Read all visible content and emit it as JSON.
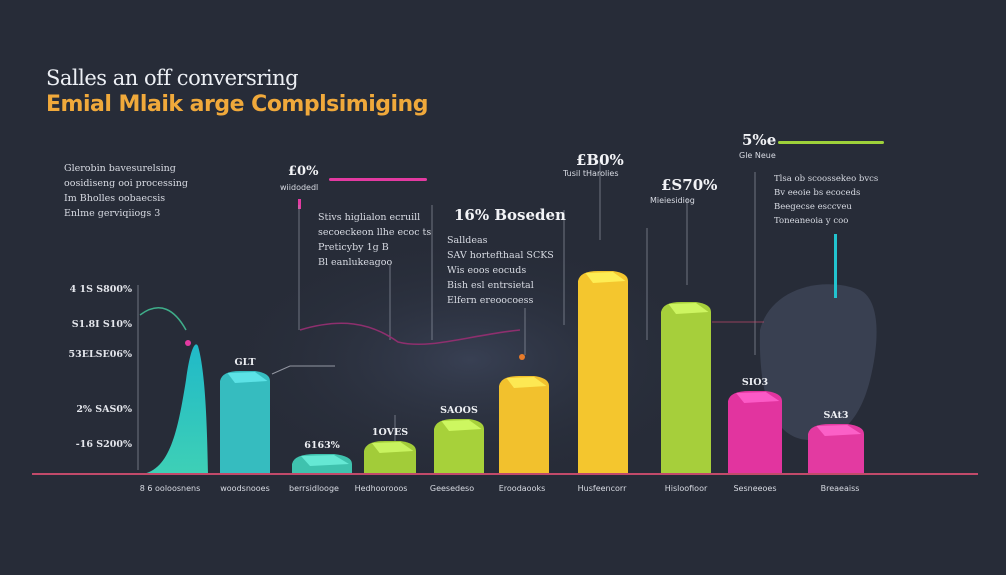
{
  "header": {
    "title": "Salles an off conversring",
    "subtitle": "Emial Mlaik arge Complsimiging"
  },
  "notes": [
    {
      "id": "n1",
      "lines": [
        "Glerobin bavesurelsing",
        "oosidiseng ooi processing",
        "Im Bholles oobaecsis",
        "Enlme gerviqiiogs 3"
      ]
    },
    {
      "id": "n2",
      "lines": [
        "Stivs higlialon ecruill",
        "secoeckeon llhe ecoc ts",
        "Preticyby 1g B",
        "Bl eanlukeagoo"
      ]
    },
    {
      "id": "n3",
      "lines": [
        "Salldeas",
        "SAV hortefthaal SCKS",
        "Wis eoos eocuds",
        "Bish esl entrsietal",
        "Elfern ereoocoess"
      ]
    },
    {
      "id": "n4",
      "lines": [
        "Tlsa ob scoossekeo bvcs",
        "Bv eeoie bs ecoceds",
        "Beegecse esccveu",
        "Toneaneoia y coo"
      ]
    }
  ],
  "headline_values": [
    {
      "id": "h1",
      "value": "£0%",
      "label": "wiidodedl"
    },
    {
      "id": "h2",
      "value": "16% Boseden",
      "label": ""
    },
    {
      "id": "h3",
      "value": "£B0%",
      "label": "Tusil tHarolies"
    },
    {
      "id": "h4",
      "value": "£S70%",
      "label": "Mieiesidiog"
    },
    {
      "id": "h5",
      "value": "5%e",
      "label": "Gle Neue"
    }
  ],
  "chart_data": {
    "type": "bar",
    "title": "Salles an off conversring",
    "subtitle": "Emial Mlaik arge Complsimiging",
    "categories": [
      "8 6 ooloosnens",
      "woodsnooes",
      "berrsidlooge",
      "Hedhoorooos",
      "Geesedeso",
      "Eroodaooks",
      "Husfeencorr",
      "Hisloofioor",
      "Sesneeoes",
      "Breaeaiss"
    ],
    "values": [
      120,
      103,
      20,
      33,
      55,
      98,
      203,
      172,
      83,
      50
    ],
    "colors": [
      "#2ec4c1",
      "#36bcbf",
      "#3fc2ae",
      "#a2cc39",
      "#a7d13a",
      "#f2c12d",
      "#f4c62e",
      "#a6cf3b",
      "#e2349f",
      "#e33aa1"
    ],
    "data_labels": [
      "",
      "GLT",
      "6163%",
      "1OVES",
      "SAOOS",
      "",
      "",
      "",
      "SIO3",
      "SAt3"
    ],
    "y_ticks": [
      {
        "label": "-16 S200%",
        "value": 30
      },
      {
        "label": "2% SAS0%",
        "value": 65
      },
      {
        "label": "53ELSE06%",
        "value": 120
      },
      {
        "label": "S1.8I S10%",
        "value": 150
      },
      {
        "label": "4 1S S800%",
        "value": 185
      }
    ],
    "ylim": [
      0,
      250
    ],
    "xlabel": "",
    "ylabel": "",
    "grid": false,
    "legend": "none"
  },
  "colors": {
    "background": "#272c38",
    "axis": "#c24a6a",
    "accent_pink": "#e33aa1",
    "accent_green": "#9ed23a",
    "accent_cyan": "#22c3cf",
    "trend": "#8e2f6e"
  }
}
